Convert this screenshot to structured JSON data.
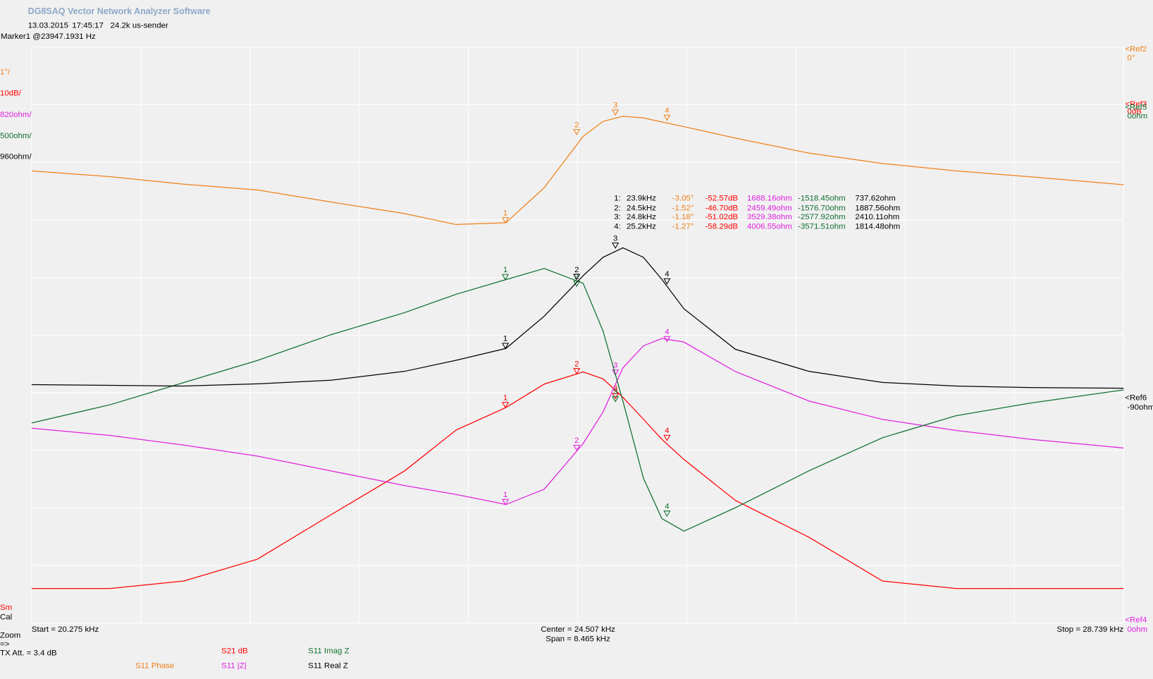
{
  "chart_data": {
    "type": "line",
    "title": "DG8SAQ Vector Network Analyzer Software",
    "date": "13.03.2015",
    "time": "17:45:17",
    "device": "24.2k us-sender",
    "marker_info": "Marker1 @23947.1931 Hz",
    "status": [
      "Sm",
      "Cal"
    ],
    "footer": [
      "Zoom",
      "=>",
      "TX Att.  = 3.4 dB"
    ],
    "center": "Center = 24.507 kHz",
    "span": "Span = 8.465 kHz",
    "xlim": [
      {
        "value": 20.275,
        "label": "Start = 20.275 kHz"
      },
      {
        "value": 28.739,
        "label": "Stop = 28.739 kHz"
      }
    ],
    "grid": true,
    "grid_divisions": 10,
    "x": [
      20.275,
      20.885,
      21.455,
      22.025,
      22.595,
      23.165,
      23.564,
      23.952,
      24.248,
      24.55,
      24.704,
      24.858,
      25.017,
      25.16,
      25.331,
      25.73,
      26.3,
      26.87,
      27.44,
      28.01,
      28.739
    ],
    "markers": [
      {
        "value": 23.947,
        "label": "23.9kHz"
      },
      {
        "value": 24.5,
        "label": "24.5kHz"
      },
      {
        "value": 24.8,
        "label": "24.8kHz"
      },
      {
        "value": 25.2,
        "label": "25.2kHz"
      }
    ],
    "marker_ids": [
      "1",
      "2",
      "3",
      "4"
    ],
    "marker_table_ids": [
      "1:",
      "2:",
      "3:",
      "4:"
    ],
    "series": [
      {
        "name": "S11  Phase",
        "color": "#f08018",
        "scale_label": "1°/",
        "ref_name": "<Ref2",
        "ref_label": "0°",
        "ylim": [
          -10,
          0
        ],
        "values": [
          -2.15,
          -2.25,
          -2.38,
          -2.48,
          -2.69,
          -2.89,
          -3.08,
          -3.05,
          -2.44,
          -1.55,
          -1.29,
          -1.2,
          -1.23,
          -1.3,
          -1.38,
          -1.58,
          -1.84,
          -2.02,
          -2.15,
          -2.25,
          -2.39
        ],
        "marker_values": [
          -3.05,
          -1.52,
          -1.18,
          -1.27
        ],
        "marker_labels": [
          "-3.05°",
          "-1.52°",
          "-1.18°",
          "-1.27°"
        ]
      },
      {
        "name": "S21  dB",
        "color": "#ff0000",
        "scale_label": "10dB/",
        "ref_name": "<Ref3",
        "ref_label": "0dB",
        "ylim": [
          -90,
          10
        ],
        "values": [
          -84,
          -84,
          -82.7,
          -78.9,
          -71.2,
          -63.6,
          -56.5,
          -52.57,
          -48.5,
          -46.4,
          -47.6,
          -50.8,
          -54.6,
          -58.1,
          -61.6,
          -68.7,
          -75.1,
          -82.7,
          -84,
          -84,
          -84
        ],
        "marker_values": [
          -52.57,
          -46.7,
          -51.02,
          -58.29
        ],
        "marker_labels": [
          "-52.57dB",
          "-46.70dB",
          "-51.02dB",
          "-58.29dB"
        ]
      },
      {
        "name": "S11  |Z|",
        "color": "#e020e0",
        "scale_label": "820ohm/",
        "ref_name": "<Ref4",
        "ref_label": "0ohm",
        "ylim": [
          0,
          8200
        ],
        "values": [
          2775,
          2670,
          2534,
          2377,
          2167,
          1958,
          1832,
          1688,
          1906,
          2555,
          3005,
          3633,
          3947,
          4052,
          4000,
          3581,
          3162,
          2900,
          2743,
          2618,
          2492
        ],
        "marker_values": [
          1688.16,
          2459.49,
          3529.38,
          4006.55
        ],
        "marker_labels": [
          "1688.16ohm",
          "2459.49ohm",
          "3529.38ohm",
          "4006.55ohm"
        ]
      },
      {
        "name": "S11  Imag Z",
        "color": "#107030",
        "scale_label": "500ohm/",
        "ref_name": "<Ref5",
        "ref_label": "0ohm",
        "ylim": [
          -4500,
          500
        ],
        "values": [
          -2763,
          -2604,
          -2412,
          -2220,
          -1997,
          -1805,
          -1646,
          -1518,
          -1422,
          -1550,
          -1965,
          -2572,
          -3242,
          -3593,
          -3702,
          -3498,
          -3178,
          -2891,
          -2700,
          -2591,
          -2476
        ],
        "marker_values": [
          -1518.45,
          -1576.7,
          -2577.92,
          -3571.51
        ],
        "marker_labels": [
          "-1518.45ohm",
          "-1576.70ohm",
          "-2577.92ohm",
          "-3571.51ohm"
        ]
      },
      {
        "name": "S11  Real Z",
        "color": "#000000",
        "scale_label": "960ohm/",
        "ref_name": "<Ref6",
        "ref_label": "-90ohm",
        "ylim": [
          -3840,
          5760
        ],
        "values": [
          135,
          123,
          110,
          147,
          208,
          356,
          539,
          738,
          1275,
          1949,
          2256,
          2415,
          2256,
          1888,
          1398,
          723,
          356,
          172,
          110,
          86,
          74
        ],
        "marker_values": [
          737.62,
          1887.56,
          2410.11,
          1814.48
        ],
        "marker_labels": [
          "737.62ohm",
          "1887.56ohm",
          "2410.11ohm",
          "1814.48ohm"
        ]
      }
    ]
  }
}
